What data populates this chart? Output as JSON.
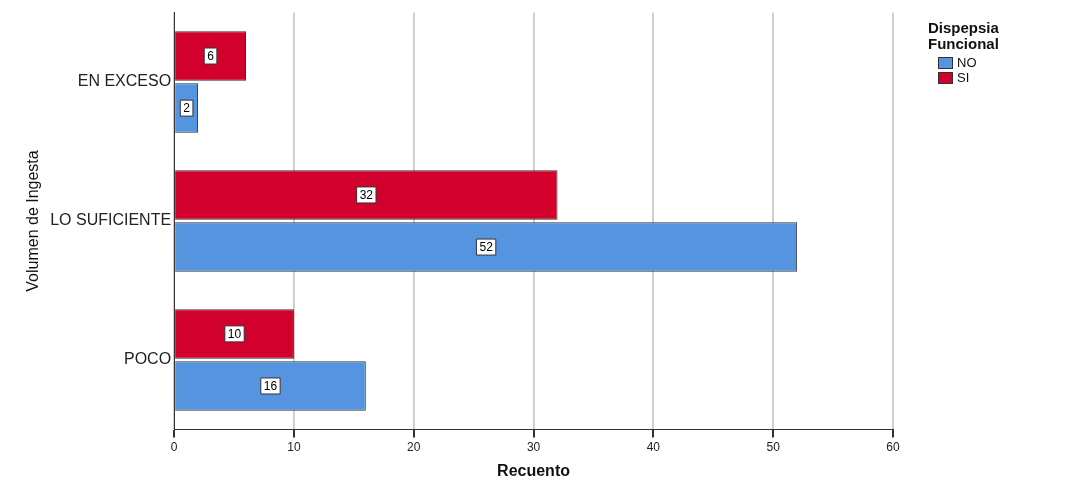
{
  "chart_data": {
    "type": "bar",
    "orientation": "horizontal",
    "xlabel": "Recuento",
    "ylabel": "Volumen de Ingesta",
    "legend_title": "Dispepsia Funcional",
    "categories": [
      "EN EXCESO",
      "LO SUFICIENTE",
      "POCO"
    ],
    "series": [
      {
        "name": "NO",
        "color": "#5595e0",
        "values": [
          2,
          52,
          16
        ]
      },
      {
        "name": "SI",
        "color": "#d2002c",
        "values": [
          6,
          32,
          10
        ]
      }
    ],
    "xlim": [
      0,
      60
    ],
    "xticks": [
      0,
      10,
      20,
      30,
      40,
      50,
      60
    ],
    "grid": "x",
    "legend": "top right",
    "data_labels": true
  }
}
